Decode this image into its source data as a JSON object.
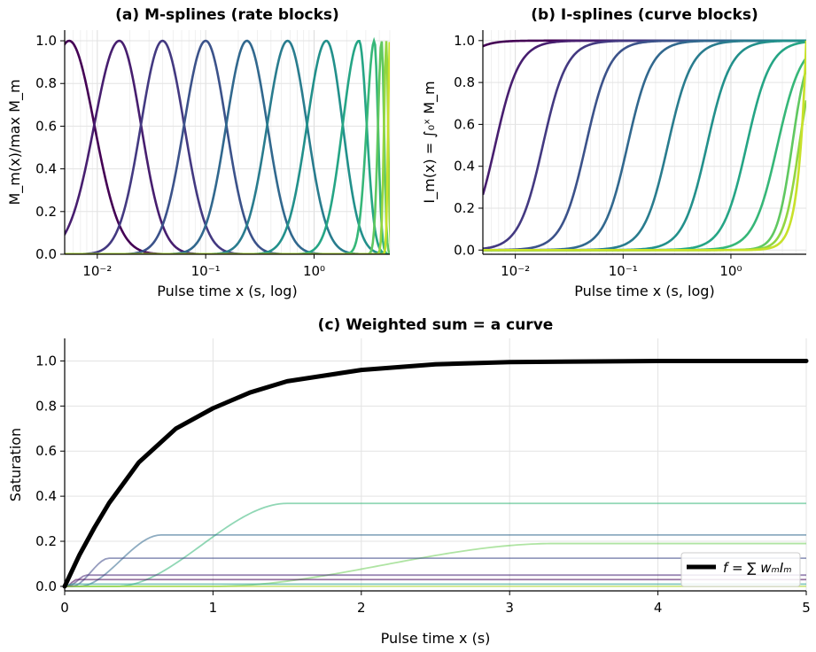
{
  "chart_data": [
    {
      "type": "line",
      "title": "(a) M-splines (rate blocks)",
      "xlabel": "Pulse time x (s, log)",
      "ylabel": "M_m(x)/max M_m",
      "xscale": "log",
      "xlim": [
        0.005,
        5
      ],
      "ylim": [
        0,
        1.05
      ],
      "xticks": [
        "10⁻²",
        "10⁻¹",
        "10⁰"
      ],
      "xtick_values": [
        0.01,
        0.1,
        1
      ],
      "yticks": [
        "0.0",
        "0.2",
        "0.4",
        "0.6",
        "0.8",
        "1.0"
      ],
      "grid": true,
      "basis": {
        "count": 12,
        "peaks_x": [
          0.0055,
          0.016,
          0.04,
          0.1,
          0.24,
          0.57,
          1.3,
          2.6,
          3.6,
          4.2,
          4.65,
          5.0
        ],
        "colormap": "viridis"
      },
      "series": []
    },
    {
      "type": "line",
      "title": "(b) I-splines (curve blocks)",
      "xlabel": "Pulse time x (s, log)",
      "ylabel": "I_m(x) = ∫₀ˣ M_m",
      "xscale": "log",
      "xlim": [
        0.005,
        5
      ],
      "ylim": [
        -0.02,
        1.05
      ],
      "xticks": [
        "10⁻²",
        "10⁻¹",
        "10⁰"
      ],
      "xtick_values": [
        0.01,
        0.1,
        1
      ],
      "yticks": [
        "0.0",
        "0.2",
        "0.4",
        "0.6",
        "0.8",
        "1.0"
      ],
      "grid": true,
      "basis": {
        "count": 12,
        "mid_x": [
          0.002,
          0.0065,
          0.018,
          0.045,
          0.11,
          0.26,
          0.6,
          1.4,
          2.7,
          3.7,
          4.3,
          4.75
        ],
        "colormap": "viridis"
      },
      "series": []
    },
    {
      "type": "line",
      "title": "(c) Weighted sum = a curve",
      "xlabel": "Pulse time x (s)",
      "ylabel": "Saturation",
      "xlim": [
        0,
        5
      ],
      "ylim": [
        -0.02,
        1.1
      ],
      "xticks": [
        "0",
        "1",
        "2",
        "3",
        "4",
        "5"
      ],
      "yticks": [
        "0.0",
        "0.2",
        "0.4",
        "0.6",
        "0.8",
        "1.0"
      ],
      "grid": true,
      "legend": {
        "position": "lower-right",
        "label": "f = ∑ wₘIₘ"
      },
      "series": [
        {
          "name": "f = ∑ wₘIₘ",
          "color": "#000000",
          "kind": "sum",
          "x": [
            0,
            0.1,
            0.2,
            0.3,
            0.5,
            0.75,
            1.0,
            1.25,
            1.5,
            2.0,
            2.5,
            3.0,
            4.0,
            5.0
          ],
          "y": [
            0,
            0.14,
            0.26,
            0.37,
            0.55,
            0.7,
            0.79,
            0.86,
            0.91,
            0.96,
            0.985,
            0.995,
            1.0,
            1.0
          ]
        }
      ],
      "components": [
        {
          "plateau": 0.368,
          "start": 0.35,
          "end": 1.5,
          "color": "#35b779"
        },
        {
          "plateau": 0.228,
          "start": 0.1,
          "end": 0.65,
          "color": "#31688e"
        },
        {
          "plateau": 0.19,
          "start": 1.0,
          "end": 3.3,
          "color": "#6ece58"
        },
        {
          "plateau": 0.125,
          "start": 0.05,
          "end": 0.3,
          "color": "#3e4989"
        },
        {
          "plateau": 0.05,
          "start": 0.02,
          "end": 0.15,
          "color": "#482878"
        },
        {
          "plateau": 0.03,
          "start": 0.01,
          "end": 0.08,
          "color": "#440154"
        },
        {
          "plateau": 0.01,
          "start": 0.0,
          "end": 0.05,
          "color": "#1f9e89"
        },
        {
          "plateau": 0.0,
          "start": 0.0,
          "end": 0.05,
          "color": "#b5de2b"
        }
      ]
    }
  ]
}
